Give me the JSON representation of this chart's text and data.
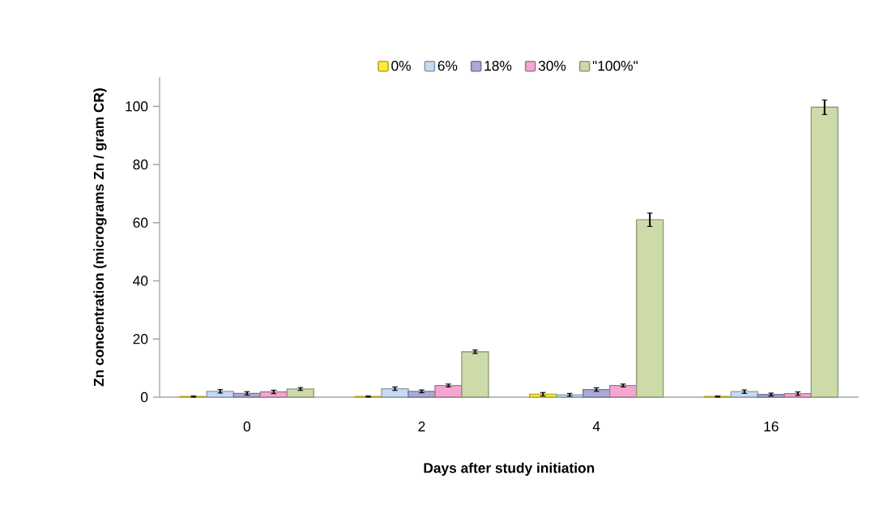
{
  "chart_data": {
    "type": "bar",
    "xlabel": "Days after study initiation",
    "ylabel": "Zn concentration (micrograms Zn / gram CR)",
    "categories": [
      "0",
      "2",
      "4",
      "16"
    ],
    "series": [
      {
        "name": "0%",
        "color": "#ffee33",
        "values": [
          0.2,
          0.2,
          1.0,
          0.2
        ],
        "errors": [
          0.2,
          0.2,
          0.6,
          0.2
        ]
      },
      {
        "name": "6%",
        "color": "#c6daf2",
        "values": [
          2.0,
          2.9,
          0.8,
          1.9
        ],
        "errors": [
          0.6,
          0.6,
          0.5,
          0.6
        ]
      },
      {
        "name": "18%",
        "color": "#aaaad8",
        "values": [
          1.3,
          2.0,
          2.6,
          0.9
        ],
        "errors": [
          0.6,
          0.5,
          0.6,
          0.5
        ]
      },
      {
        "name": "30%",
        "color": "#f4a6cf",
        "values": [
          1.8,
          4.0,
          4.0,
          1.2
        ],
        "errors": [
          0.6,
          0.5,
          0.5,
          0.6
        ]
      },
      {
        "name": "\"100%\"",
        "color": "#cddba8",
        "values": [
          2.8,
          15.6,
          61.0,
          99.7
        ],
        "errors": [
          0.5,
          0.6,
          2.3,
          2.5
        ]
      }
    ],
    "ylim": [
      0,
      110
    ],
    "yticks": [
      0,
      20,
      40,
      60,
      80,
      100
    ],
    "grid": false,
    "legend": "top"
  }
}
